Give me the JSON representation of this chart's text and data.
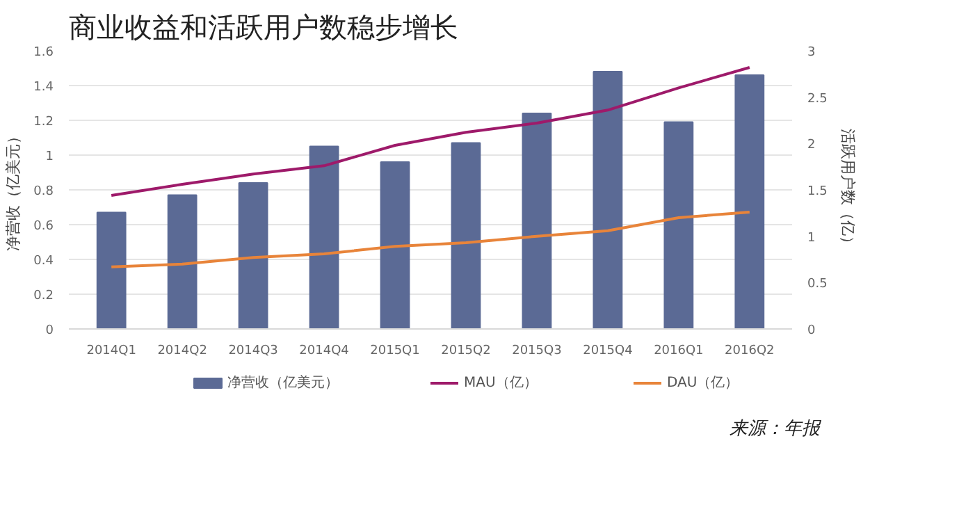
{
  "chart_data": {
    "type": "bar",
    "title": "商业收益和活跃用户数稳步增长",
    "ylabel": "净营收（亿美元）",
    "y2label": "活跃用户数（亿）",
    "categories": [
      "2014Q1",
      "2014Q2",
      "2014Q3",
      "2014Q4",
      "2015Q1",
      "2015Q2",
      "2015Q3",
      "2015Q4",
      "2016Q1",
      "2016Q2"
    ],
    "series": [
      {
        "name": "净营收（亿美元）",
        "type": "bar",
        "color": "#5b6a95",
        "values": [
          0.67,
          0.77,
          0.84,
          1.05,
          0.96,
          1.07,
          1.24,
          1.48,
          1.19,
          1.46
        ]
      },
      {
        "name": "MAU（亿）",
        "type": "line",
        "axis": "y2",
        "color": "#9e1a6a",
        "values": [
          1.44,
          1.56,
          1.67,
          1.76,
          1.98,
          2.12,
          2.22,
          2.36,
          2.6,
          2.82
        ]
      },
      {
        "name": "DAU（亿）",
        "type": "line",
        "axis": "y2",
        "color": "#e8843a",
        "values": [
          0.67,
          0.7,
          0.77,
          0.81,
          0.89,
          0.93,
          1.0,
          1.06,
          1.2,
          1.26
        ]
      }
    ],
    "ylim": [
      0,
      1.6
    ],
    "yticks": [
      0,
      0.2,
      0.4,
      0.6,
      0.8,
      1,
      1.2,
      1.4,
      1.6
    ],
    "y2lim": [
      0,
      3
    ],
    "y2ticks": [
      0,
      0.5,
      1,
      1.5,
      2,
      2.5,
      3
    ],
    "grid": "y",
    "legend": "bottom",
    "marker": "none",
    "line_style": "solid",
    "annotations": [
      "来源：年报"
    ]
  }
}
